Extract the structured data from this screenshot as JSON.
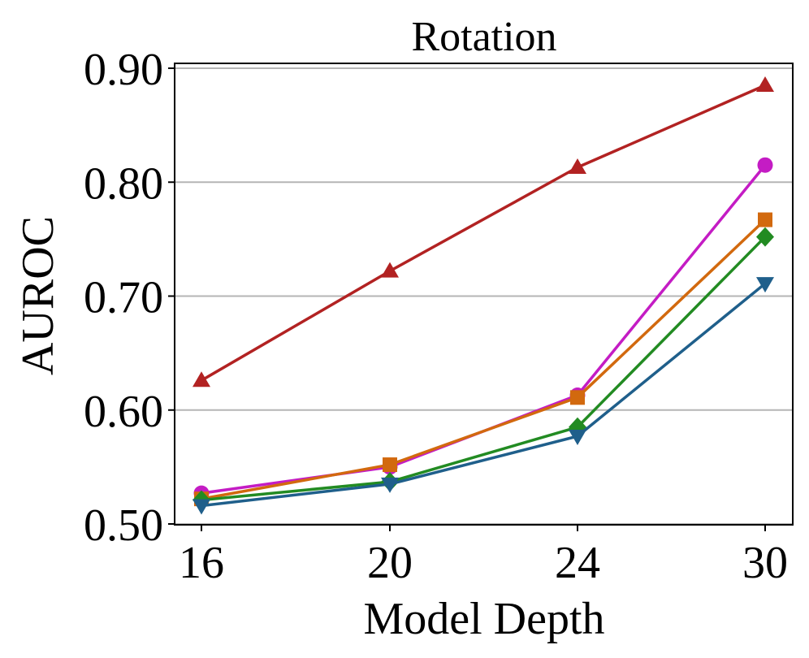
{
  "chart_data": {
    "type": "line",
    "title": "Rotation",
    "xlabel": "Model Depth",
    "ylabel": "AUROC",
    "categories": [
      "16",
      "20",
      "24",
      "30"
    ],
    "ylim": [
      0.5,
      0.9
    ],
    "yticks": [
      0.5,
      0.6,
      0.7,
      0.8,
      0.9
    ],
    "ytick_labels": [
      "0.50",
      "0.60",
      "0.70",
      "0.80",
      "0.90"
    ],
    "grid": "horizontal",
    "series": [
      {
        "name": "series-red",
        "color": "#b22222",
        "marker": "triangle-up",
        "values": [
          0.626,
          0.722,
          0.813,
          0.885
        ]
      },
      {
        "name": "series-magenta",
        "color": "#c41cc4",
        "marker": "circle",
        "values": [
          0.527,
          0.55,
          0.613,
          0.815
        ]
      },
      {
        "name": "series-orange",
        "color": "#d2690e",
        "marker": "square",
        "values": [
          0.522,
          0.552,
          0.611,
          0.767
        ]
      },
      {
        "name": "series-green",
        "color": "#228b22",
        "marker": "diamond",
        "values": [
          0.521,
          0.537,
          0.585,
          0.752
        ]
      },
      {
        "name": "series-blue",
        "color": "#1f5f8b",
        "marker": "triangle-down",
        "values": [
          0.516,
          0.535,
          0.577,
          0.711
        ]
      }
    ]
  }
}
